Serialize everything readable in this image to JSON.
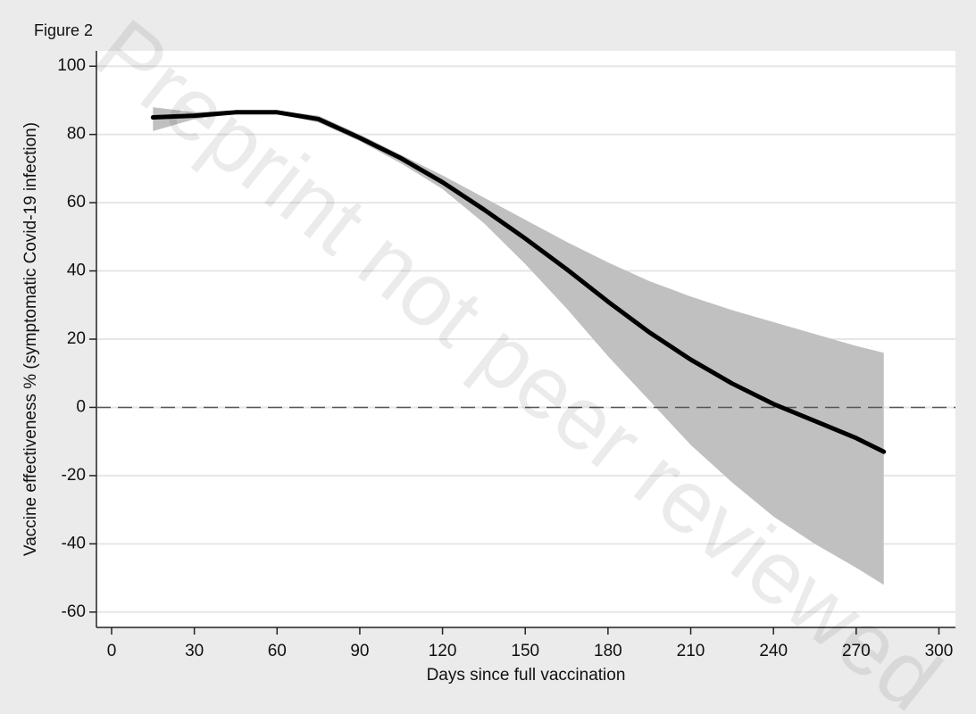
{
  "chart_data": {
    "type": "line",
    "title": "Figure 2",
    "xlabel": "Days since full vaccination",
    "ylabel": "Vaccine effectiveness % (symptomatic Covid-19 infection)",
    "watermark": "Preprint not peer reviewed",
    "x": [
      15,
      30,
      45,
      60,
      75,
      90,
      105,
      120,
      135,
      150,
      165,
      180,
      195,
      210,
      225,
      240,
      255,
      270,
      280
    ],
    "values": [
      85,
      85.5,
      86.5,
      86.5,
      84.5,
      79,
      73,
      66,
      58,
      49.5,
      40.5,
      31,
      22,
      14,
      7,
      1,
      -4,
      -9,
      -13
    ],
    "color": "#000000",
    "band": {
      "upper": [
        88,
        86.5,
        87,
        87,
        85.5,
        80,
        74,
        68,
        61.5,
        55,
        48.5,
        42.5,
        37,
        32.5,
        28.5,
        25,
        21.5,
        18,
        16
      ],
      "lower": [
        81,
        84.5,
        86,
        86,
        83.5,
        78,
        71.5,
        64,
        54,
        42,
        29,
        15,
        2,
        -11,
        -22,
        -32,
        -40,
        -47,
        -52
      ],
      "color": "#c0c0c0"
    },
    "reference_y": 0,
    "xlim": [
      -5.5,
      306
    ],
    "ylim": [
      -64.5,
      104.5
    ],
    "xticks": [
      0,
      30,
      60,
      90,
      120,
      150,
      180,
      210,
      240,
      270,
      300
    ],
    "yticks": [
      -60,
      -40,
      -20,
      0,
      20,
      40,
      60,
      80,
      100
    ],
    "grid": true
  }
}
